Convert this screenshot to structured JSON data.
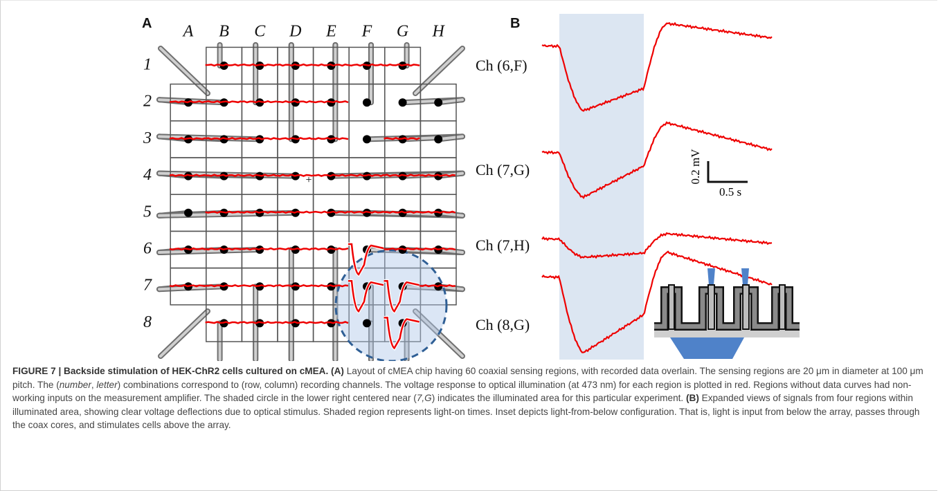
{
  "panel_a": {
    "label": "A",
    "columns": [
      "A",
      "B",
      "C",
      "D",
      "E",
      "F",
      "G",
      "H"
    ],
    "rows": [
      "1",
      "2",
      "3",
      "4",
      "5",
      "6",
      "7",
      "8"
    ]
  },
  "panel_b": {
    "label": "B",
    "channels": [
      "Ch (6,F)",
      "Ch (7,G)",
      "Ch (7,H)",
      "Ch (8,G)"
    ],
    "scale_bar": {
      "y_label": "0.2 mV",
      "x_label": "0.5 s"
    }
  },
  "caption": {
    "parts": [
      "FIGURE 7 | Backside stimulation of HEK-ChR2 cells cultured on cMEA.",
      "(A)",
      "Layout of cMEA chip having 60 coaxial sensing regions, with recorded data overlain. The sensing regions are 20 μm in diameter at 100 μm pitch. The (",
      "number",
      ", ",
      "letter",
      ") combinations correspond to (row, column) recording channels. The voltage response to optical illumination (at 473 nm) for each region is plotted in red. Regions without data curves had non-working inputs on the measurement amplifier. The shaded circle in the lower right centered near (",
      "7,G",
      ") indicates the illuminated area for this particular experiment.",
      "(B)",
      "Expanded views of signals from four regions within illuminated area, showing clear voltage deflections due to optical stimulus. Shaded region represents light-on times. Inset depicts light-from-below configuration. That is, light is input from below the array, passes through the coax cores, and stimulates cells above the array."
    ]
  }
}
